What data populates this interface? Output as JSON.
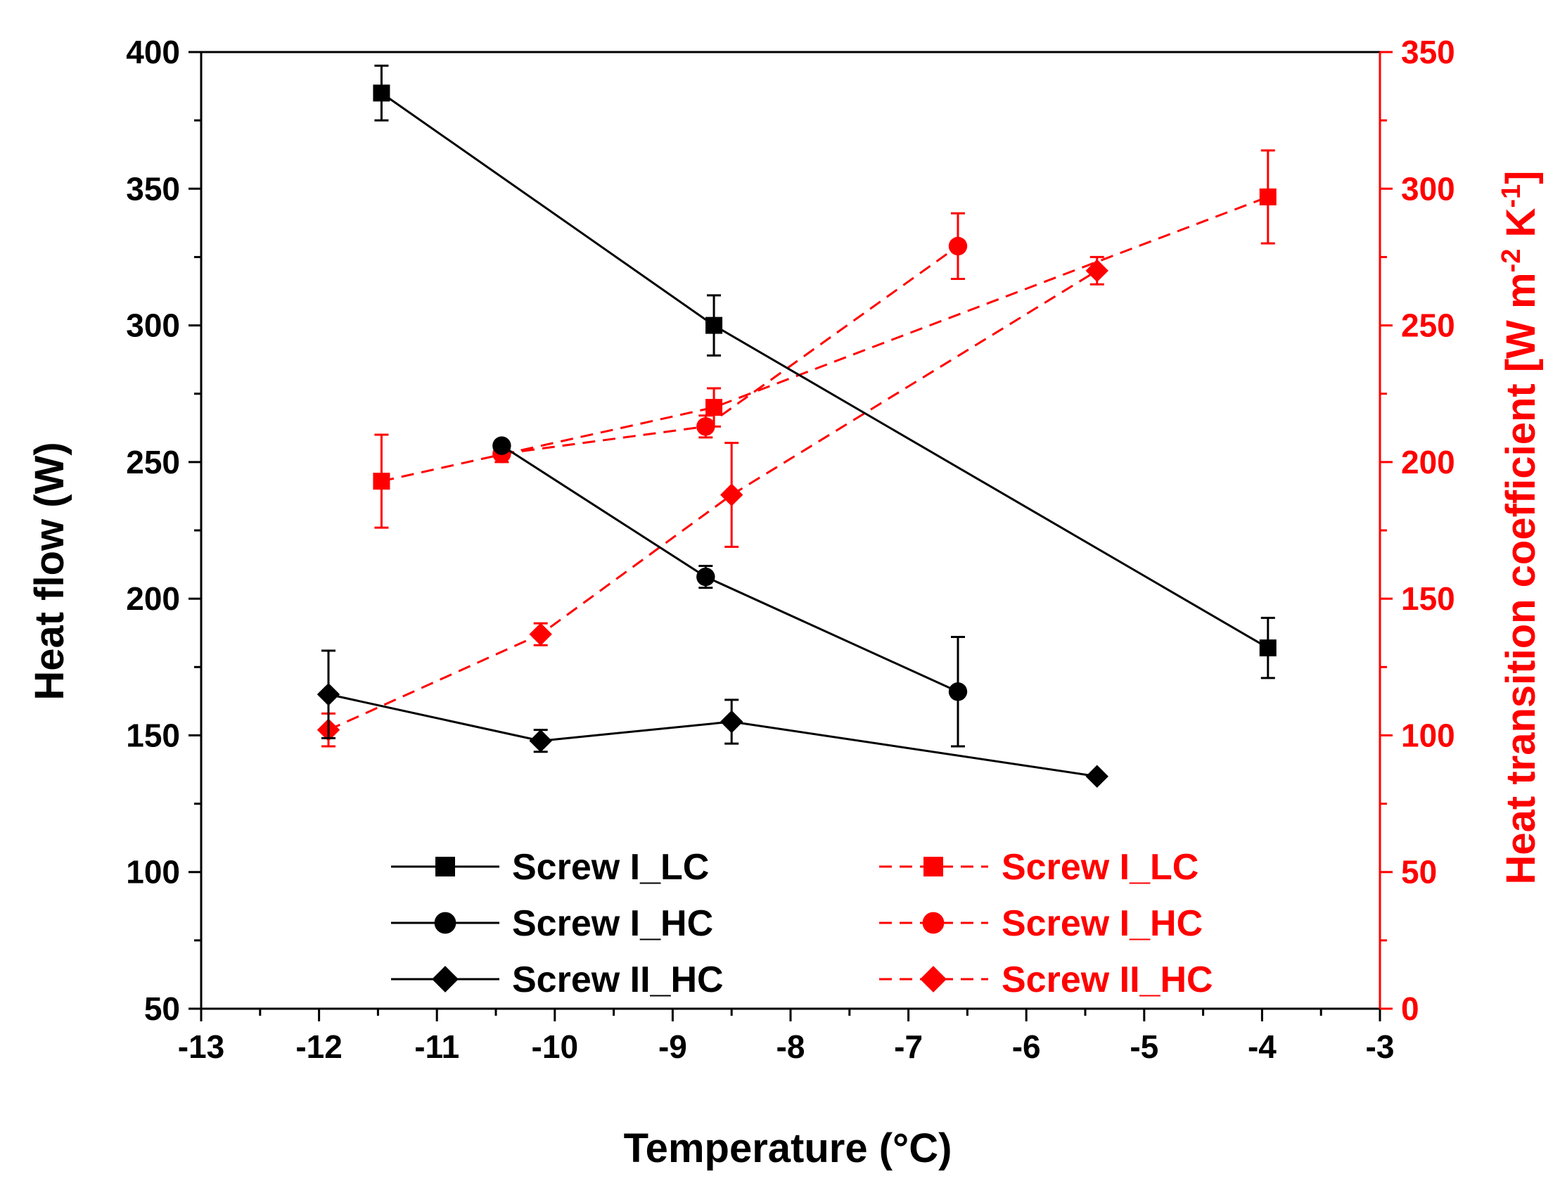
{
  "chart_data": {
    "type": "line",
    "xlabel": "Temperature (°C)",
    "ylabel_left": "Heat flow (W)",
    "ylabel_right": "Heat transition coefficient [W m-2 K-1]",
    "ylabel_right_parts": {
      "base": "Heat transition coefficient [W m",
      "exp1": "-2",
      "mid": " K",
      "exp2": "-1",
      "end": "]"
    },
    "xlim": [
      -13,
      -3
    ],
    "ylim_left": [
      50,
      400
    ],
    "ylim_right": [
      0,
      350
    ],
    "x_ticks": [
      -13,
      -12,
      -11,
      -10,
      -9,
      -8,
      -7,
      -6,
      -5,
      -4,
      -3
    ],
    "y_left_ticks": [
      50,
      100,
      150,
      200,
      250,
      300,
      350,
      400
    ],
    "y_right_ticks": [
      0,
      50,
      100,
      150,
      200,
      250,
      300,
      350
    ],
    "grid": false,
    "legend_placement": "bottom-center",
    "colors": {
      "left": "#000000",
      "right": "#ff0000"
    },
    "series": [
      {
        "name": "Screw I_LC",
        "axis": "left",
        "marker": "square",
        "line": "solid",
        "color": "#000000",
        "x": [
          -11.47,
          -8.65,
          -3.95
        ],
        "y": [
          385,
          300,
          182
        ],
        "err": [
          10,
          11,
          11
        ]
      },
      {
        "name": "Screw I_HC",
        "axis": "left",
        "marker": "circle",
        "line": "solid",
        "color": "#000000",
        "x": [
          -10.45,
          -8.72,
          -6.58
        ],
        "y": [
          256,
          208,
          166
        ],
        "err": [
          0,
          4,
          20
        ]
      },
      {
        "name": "Screw II_HC",
        "axis": "left",
        "marker": "diamond",
        "line": "solid",
        "color": "#000000",
        "x": [
          -11.92,
          -10.12,
          -8.5,
          -5.4
        ],
        "y": [
          165,
          148,
          155,
          135
        ],
        "err": [
          16,
          4,
          8,
          0
        ]
      },
      {
        "name": "Screw I_LC",
        "axis": "right",
        "marker": "square",
        "line": "dashed",
        "color": "#ff0000",
        "x": [
          -11.47,
          -8.65,
          -3.95
        ],
        "y": [
          193,
          220,
          297
        ],
        "err": [
          17,
          7,
          17
        ]
      },
      {
        "name": "Screw I_HC",
        "axis": "right",
        "marker": "circle",
        "line": "dashed",
        "color": "#ff0000",
        "x": [
          -10.45,
          -8.72,
          -6.58
        ],
        "y": [
          203,
          213,
          279
        ],
        "err": [
          3,
          4,
          12
        ]
      },
      {
        "name": "Screw II_HC",
        "axis": "right",
        "marker": "diamond",
        "line": "dashed",
        "color": "#ff0000",
        "x": [
          -11.92,
          -10.12,
          -8.5,
          -5.4
        ],
        "y": [
          102,
          137,
          188,
          270
        ],
        "err": [
          6,
          4,
          19,
          5
        ]
      }
    ]
  }
}
